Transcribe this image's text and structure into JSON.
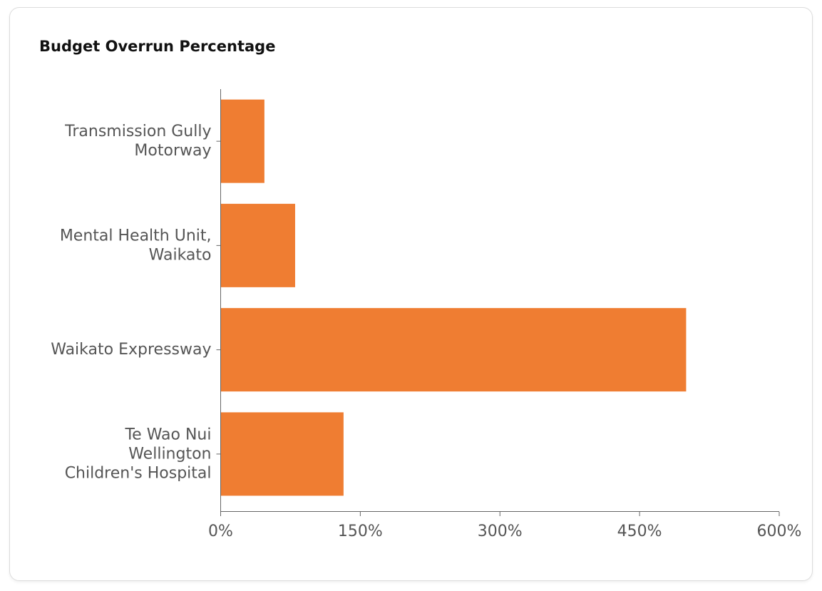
{
  "chart_data": {
    "type": "bar",
    "orientation": "horizontal",
    "title": "Budget Overrun Percentage",
    "categories": [
      [
        "Transmission Gully",
        "Motorway"
      ],
      [
        "Mental Health Unit,",
        "Waikato"
      ],
      [
        "Waikato Expressway"
      ],
      [
        "Te Wao Nui",
        "Wellington",
        "Children's Hospital"
      ]
    ],
    "values": [
      47,
      80,
      500,
      132
    ],
    "xlim": [
      0,
      600
    ],
    "x_ticks": [
      0,
      150,
      300,
      450,
      600
    ],
    "x_tick_labels": [
      "0%",
      "150%",
      "300%",
      "450%",
      "600%"
    ],
    "xlabel": "",
    "ylabel": "",
    "grid": false,
    "legend": "none",
    "colors": {
      "bar": "#ef7d32",
      "axis": "#666666",
      "tick_label": "#555555",
      "title": "#111111"
    }
  }
}
